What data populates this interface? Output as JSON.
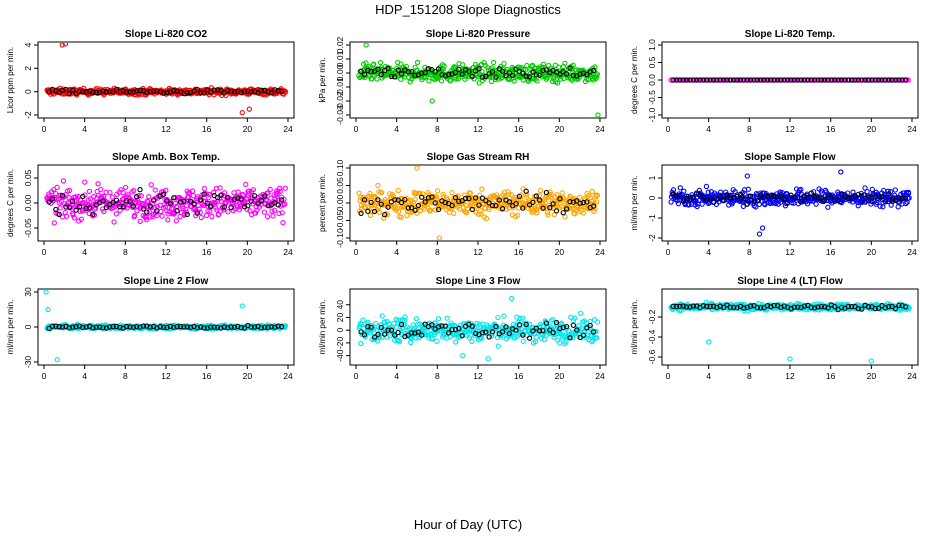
{
  "title": "HDP_151208  Slope Diagnostics",
  "xlabel": "Hour of Day (UTC)",
  "colors": {
    "black": "#000000",
    "red": "#ff0000",
    "green": "#00cc00",
    "magenta": "#ff00ff",
    "orange": "#ffa500",
    "blue": "#0000ff",
    "cyan": "#00e5ee"
  },
  "chart_data": [
    {
      "type": "scatter",
      "title": "Slope Li-820 CO2",
      "ylabel": "Licor ppm per min.",
      "color": "#ff0000",
      "xlim": [
        0,
        24
      ],
      "xticks": [
        0,
        4,
        8,
        12,
        16,
        20,
        24
      ],
      "ylim": [
        -2,
        4
      ],
      "yticks": [
        -2,
        0,
        2,
        4
      ],
      "ytick_labels": [
        "-2",
        "0",
        "2",
        "4"
      ],
      "spread": 0.25,
      "outliers": [
        [
          1.8,
          4.0
        ],
        [
          2.1,
          4.1
        ],
        [
          19.5,
          -1.8
        ],
        [
          20.2,
          -1.5
        ]
      ]
    },
    {
      "type": "scatter",
      "title": "Slope Li-820 Pressure",
      "ylabel": "kPa per min.",
      "color": "#00cc00",
      "xlim": [
        0,
        24
      ],
      "xticks": [
        0,
        4,
        8,
        12,
        16,
        20,
        24
      ],
      "ylim": [
        -0.03,
        0.02
      ],
      "yticks": [
        -0.03,
        -0.02,
        -0.01,
        0.0,
        0.01,
        0.02
      ],
      "ytick_labels": [
        "-0.03",
        "-0.02",
        "-0.01",
        "0.00",
        "0.01",
        "0.02"
      ],
      "spread": 0.006,
      "outliers": [
        [
          1.0,
          0.02
        ],
        [
          23.8,
          -0.03
        ],
        [
          7.5,
          -0.02
        ]
      ]
    },
    {
      "type": "scatter",
      "title": "Slope Li-820 Temp.",
      "ylabel": "degrees C per min.",
      "color": "#ff00ff",
      "xlim": [
        0,
        24
      ],
      "xticks": [
        0,
        4,
        8,
        12,
        16,
        20,
        24
      ],
      "ylim": [
        -1.0,
        1.0
      ],
      "yticks": [
        -1.0,
        -0.5,
        0.0,
        0.5,
        1.0
      ],
      "ytick_labels": [
        "-1.0",
        "-0.5",
        "0.0",
        "0.5",
        "1.0"
      ],
      "spread": 0,
      "outliers": []
    },
    {
      "type": "scatter",
      "title": "Slope Amb. Box Temp.",
      "ylabel": "degrees C per min.",
      "color": "#ff00ff",
      "xlim": [
        0,
        24
      ],
      "xticks": [
        0,
        4,
        8,
        12,
        16,
        20,
        24
      ],
      "ylim": [
        -0.07,
        0.07
      ],
      "yticks": [
        -0.05,
        0.0,
        0.05
      ],
      "ytick_labels": [
        "-0.05",
        "0.00",
        "0.05"
      ],
      "spread": 0.03,
      "outliers": []
    },
    {
      "type": "scatter",
      "title": "Slope Gas Stream RH",
      "ylabel": "percent per min.",
      "color": "#ffa500",
      "xlim": [
        0,
        24
      ],
      "xticks": [
        0,
        4,
        8,
        12,
        16,
        20,
        24
      ],
      "ylim": [
        -0.1,
        0.1
      ],
      "yticks": [
        -0.1,
        -0.05,
        0.0,
        0.05,
        0.1
      ],
      "ytick_labels": [
        "-0.10",
        "-0.05",
        "0.00",
        "0.05",
        "0.10"
      ],
      "spread": 0.035,
      "outliers": [
        [
          6.0,
          0.1
        ],
        [
          8.2,
          -0.1
        ]
      ]
    },
    {
      "type": "scatter",
      "title": "Slope Sample Flow",
      "ylabel": "ml/min per min.",
      "color": "#0000ff",
      "xlim": [
        0,
        24
      ],
      "xticks": [
        0,
        4,
        8,
        12,
        16,
        20,
        24
      ],
      "ylim": [
        -2,
        1.5
      ],
      "yticks": [
        -2,
        -1,
        0,
        1
      ],
      "ytick_labels": [
        "-2",
        "-1",
        "0",
        "1"
      ],
      "spread": 0.4,
      "outliers": [
        [
          9.0,
          -1.8
        ],
        [
          9.3,
          -1.5
        ],
        [
          17.0,
          1.3
        ],
        [
          7.8,
          1.1
        ]
      ]
    },
    {
      "type": "scatter",
      "title": "Slope Line 2 Flow",
      "ylabel": "ml/min per min.",
      "color": "#00e5ee",
      "xlim": [
        0,
        24
      ],
      "xticks": [
        0,
        4,
        8,
        12,
        16,
        20,
        24
      ],
      "ylim": [
        -30,
        30
      ],
      "yticks": [
        -30,
        0,
        30
      ],
      "ytick_labels": [
        "-30",
        "0",
        "30"
      ],
      "spread": 1.5,
      "outliers": [
        [
          0.2,
          30
        ],
        [
          0.4,
          15
        ],
        [
          1.3,
          -28
        ],
        [
          19.5,
          18
        ]
      ]
    },
    {
      "type": "scatter",
      "title": "Slope Line 3 Flow",
      "ylabel": "ml/min per min.",
      "color": "#00e5ee",
      "xlim": [
        0,
        24
      ],
      "xticks": [
        0,
        4,
        8,
        12,
        16,
        20,
        24
      ],
      "ylim": [
        -50,
        60
      ],
      "yticks": [
        -40,
        -20,
        0,
        20,
        40
      ],
      "ytick_labels": [
        "-40",
        "-20",
        "0",
        "20",
        "40"
      ],
      "spread": 18,
      "outliers": [
        [
          15.3,
          50
        ],
        [
          13.0,
          -45
        ],
        [
          10.5,
          -40
        ]
      ]
    },
    {
      "type": "scatter",
      "title": "Slope Line 4 (LT) Flow",
      "ylabel": "ml/min per min.",
      "color": "#00e5ee",
      "xlim": [
        0,
        24
      ],
      "xticks": [
        0,
        4,
        8,
        12,
        16,
        20,
        24
      ],
      "ylim": [
        -0.65,
        0.05
      ],
      "yticks": [
        -0.6,
        -0.4,
        -0.2
      ],
      "ytick_labels": [
        "-0.6",
        "-0.4",
        "-0.2"
      ],
      "spread": 0.03,
      "outliers": [
        [
          4.0,
          -0.45
        ],
        [
          12.0,
          -0.62
        ],
        [
          20.0,
          -0.64
        ]
      ]
    }
  ]
}
